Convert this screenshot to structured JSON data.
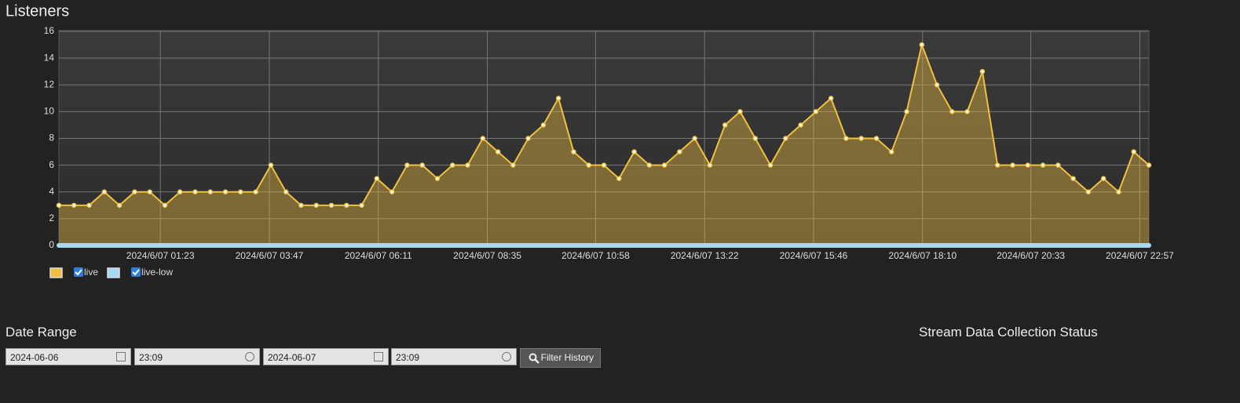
{
  "chart_data": {
    "type": "line",
    "title": "Listeners",
    "x": [
      "2024/6/06 23:09",
      "2024/6/06 23:29",
      "2024/6/06 23:49",
      "2024/6/07 00:09",
      "2024/6/07 00:29",
      "2024/6/07 00:49",
      "2024/6/07 01:09",
      "2024/6/07 01:29",
      "2024/6/07 01:49",
      "2024/6/07 02:09",
      "2024/6/07 02:29",
      "2024/6/07 02:49",
      "2024/6/07 03:09",
      "2024/6/07 03:29",
      "2024/6/07 03:49",
      "2024/6/07 04:09",
      "2024/6/07 04:29",
      "2024/6/07 04:49",
      "2024/6/07 05:09",
      "2024/6/07 05:29",
      "2024/6/07 05:49",
      "2024/6/07 06:09",
      "2024/6/07 06:29",
      "2024/6/07 06:49",
      "2024/6/07 07:09",
      "2024/6/07 07:29",
      "2024/6/07 07:49",
      "2024/6/07 08:09",
      "2024/6/07 08:29",
      "2024/6/07 08:49",
      "2024/6/07 09:09",
      "2024/6/07 09:29",
      "2024/6/07 09:49",
      "2024/6/07 10:09",
      "2024/6/07 10:29",
      "2024/6/07 10:49",
      "2024/6/07 11:09",
      "2024/6/07 11:29",
      "2024/6/07 11:49",
      "2024/6/07 12:09",
      "2024/6/07 12:29",
      "2024/6/07 12:49",
      "2024/6/07 13:09",
      "2024/6/07 13:29",
      "2024/6/07 13:49",
      "2024/6/07 14:09",
      "2024/6/07 14:29",
      "2024/6/07 14:49",
      "2024/6/07 15:09",
      "2024/6/07 15:29",
      "2024/6/07 15:49",
      "2024/6/07 16:09",
      "2024/6/07 16:29",
      "2024/6/07 16:49",
      "2024/6/07 17:09",
      "2024/6/07 17:29",
      "2024/6/07 17:49",
      "2024/6/07 18:09",
      "2024/6/07 18:29",
      "2024/6/07 18:49",
      "2024/6/07 19:09",
      "2024/6/07 19:29",
      "2024/6/07 19:49",
      "2024/6/07 20:09",
      "2024/6/07 20:29",
      "2024/6/07 20:49",
      "2024/6/07 21:09",
      "2024/6/07 21:29",
      "2024/6/07 21:49",
      "2024/6/07 22:09",
      "2024/6/07 22:29",
      "2024/6/07 22:49",
      "2024/6/07 23:09"
    ],
    "series": [
      {
        "name": "live",
        "color": "#f0c040",
        "area": true,
        "values": [
          3,
          3,
          3,
          4,
          3,
          4,
          4,
          3,
          4,
          4,
          4,
          4,
          4,
          4,
          6,
          4,
          3,
          3,
          3,
          3,
          3,
          5,
          4,
          6,
          6,
          5,
          6,
          6,
          8,
          7,
          6,
          8,
          9,
          11,
          7,
          6,
          6,
          5,
          7,
          6,
          6,
          7,
          8,
          6,
          9,
          10,
          8,
          6,
          8,
          9,
          10,
          11,
          8,
          8,
          8,
          7,
          10,
          15,
          12,
          10,
          10,
          13,
          6,
          6,
          6,
          6,
          6,
          5,
          4,
          5,
          4,
          7,
          6
        ]
      },
      {
        "name": "live-low",
        "color": "#a8d8f0",
        "area": false,
        "values": [
          0,
          0,
          0,
          0,
          0,
          0,
          0,
          0,
          0,
          0,
          0,
          0,
          0,
          0,
          0,
          0,
          0,
          0,
          0,
          0,
          0,
          0,
          0,
          0,
          0,
          0,
          0,
          0,
          0,
          0,
          0,
          0,
          0,
          0,
          0,
          0,
          0,
          0,
          0,
          0,
          0,
          0,
          0,
          0,
          0,
          0,
          0,
          0,
          0,
          0,
          0,
          0,
          0,
          0,
          0,
          0,
          0,
          0,
          0,
          0,
          0,
          0,
          0,
          0,
          0,
          0,
          0,
          0,
          0,
          0,
          0,
          0,
          0
        ]
      }
    ],
    "xlim": [
      "2024/6/06 23:09",
      "2024/6/07 23:09"
    ],
    "xticks": [
      "2024/6/07 01:23",
      "2024/6/07 03:47",
      "2024/6/07 06:11",
      "2024/6/07 08:35",
      "2024/6/07 10:58",
      "2024/6/07 13:22",
      "2024/6/07 15:46",
      "2024/6/07 18:10",
      "2024/6/07 20:33",
      "2024/6/07 22:57"
    ],
    "ylim": [
      0,
      16
    ],
    "yticks": [
      0,
      2,
      4,
      6,
      8,
      10,
      12,
      14,
      16
    ],
    "grid": true
  },
  "form": {
    "heading": "Date Range",
    "start_date": "2024-06-06",
    "start_time": "23:09",
    "end_date": "2024-06-07",
    "end_time": "23:09",
    "button": "Filter History"
  },
  "status": {
    "heading": "Stream Data Collection Status"
  }
}
